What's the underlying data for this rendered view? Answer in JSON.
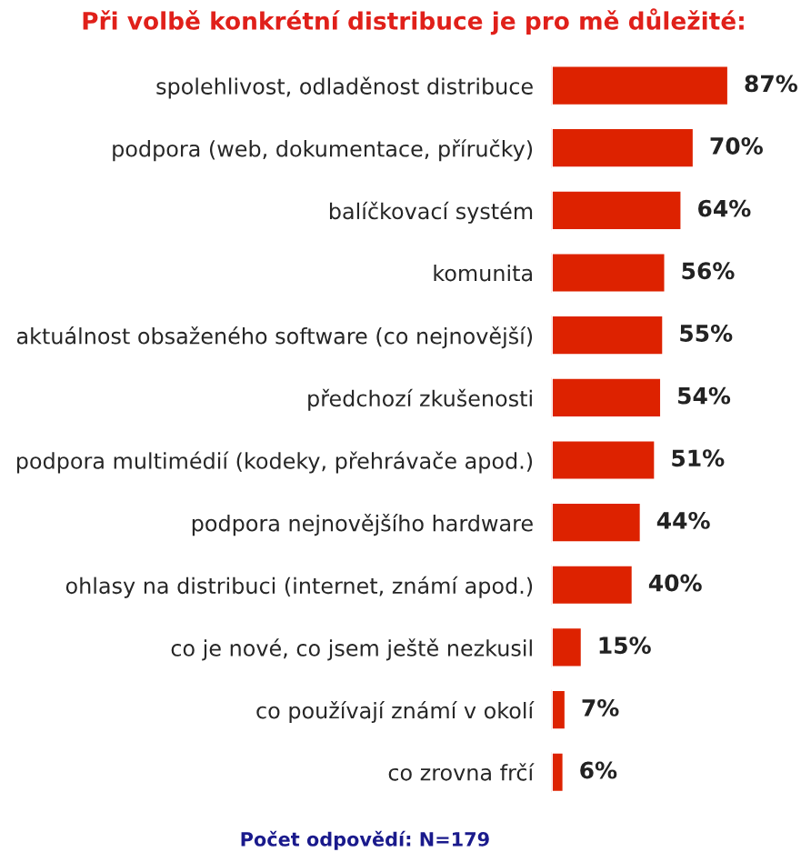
{
  "chart_data": {
    "type": "bar",
    "orientation": "horizontal",
    "title": "Při volbě konkrétní distribuce je pro mě důležité:",
    "categories": [
      "spolehlivost, odladěnost distribuce",
      "podpora (web, dokumentace, příručky)",
      "balíčkovací systém",
      "komunita",
      "aktuálnost obsaženého software (co nejnovější)",
      "předchozí zkušenosti",
      "podpora multimédií (kodeky, přehrávače apod.)",
      "podpora nejnovějšího hardware",
      "ohlasy na distribuci (internet, známí apod.)",
      "co je nové, co jsem ještě nezkusil",
      "co používají známí v okolí",
      "co zrovna frčí"
    ],
    "values": [
      87,
      70,
      64,
      56,
      55,
      54,
      51,
      44,
      40,
      15,
      7,
      6
    ],
    "value_labels": [
      "87%",
      "70%",
      "64%",
      "56%",
      "55%",
      "54%",
      "51%",
      "44%",
      "40%",
      "15%",
      "7%",
      "6%"
    ],
    "color": "#dd2200",
    "annotations": [
      "Počet odpovědí: N=179"
    ]
  }
}
